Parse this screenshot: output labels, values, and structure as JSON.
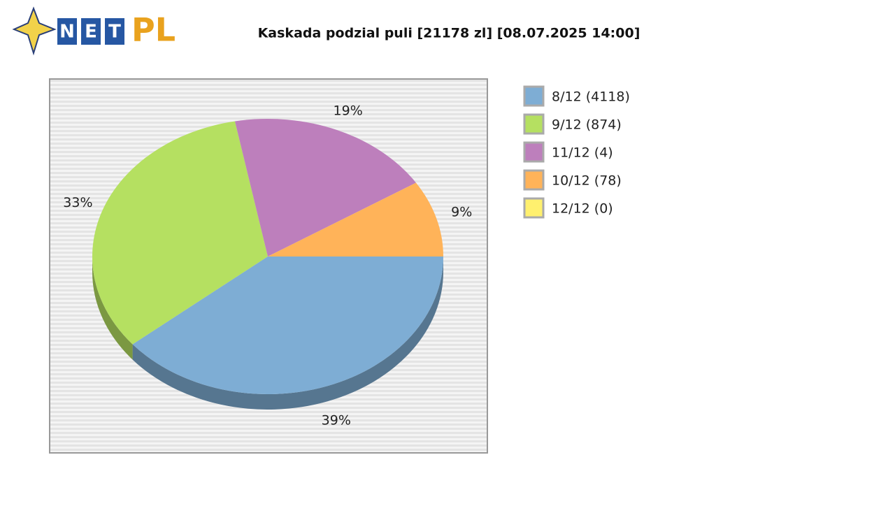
{
  "logo": {
    "letters": [
      "N",
      "E",
      "T"
    ],
    "brand": "PL"
  },
  "chart_data": {
    "type": "pie",
    "title": "Kaskada podzial puli [21178 zl] [08.07.2025 14:00]",
    "categories": [
      "8/12 (4118)",
      "9/12 (874)",
      "11/12 (4)",
      "10/12 (78)",
      "12/12 (0)"
    ],
    "values": [
      39,
      33,
      19,
      9,
      0
    ],
    "value_labels": [
      "39%",
      "33%",
      "19%",
      "9%",
      null
    ],
    "colors": [
      "#7eadd4",
      "#b5e061",
      "#bd7fbc",
      "#ffb359",
      "#fff06e"
    ],
    "legend": "right"
  }
}
